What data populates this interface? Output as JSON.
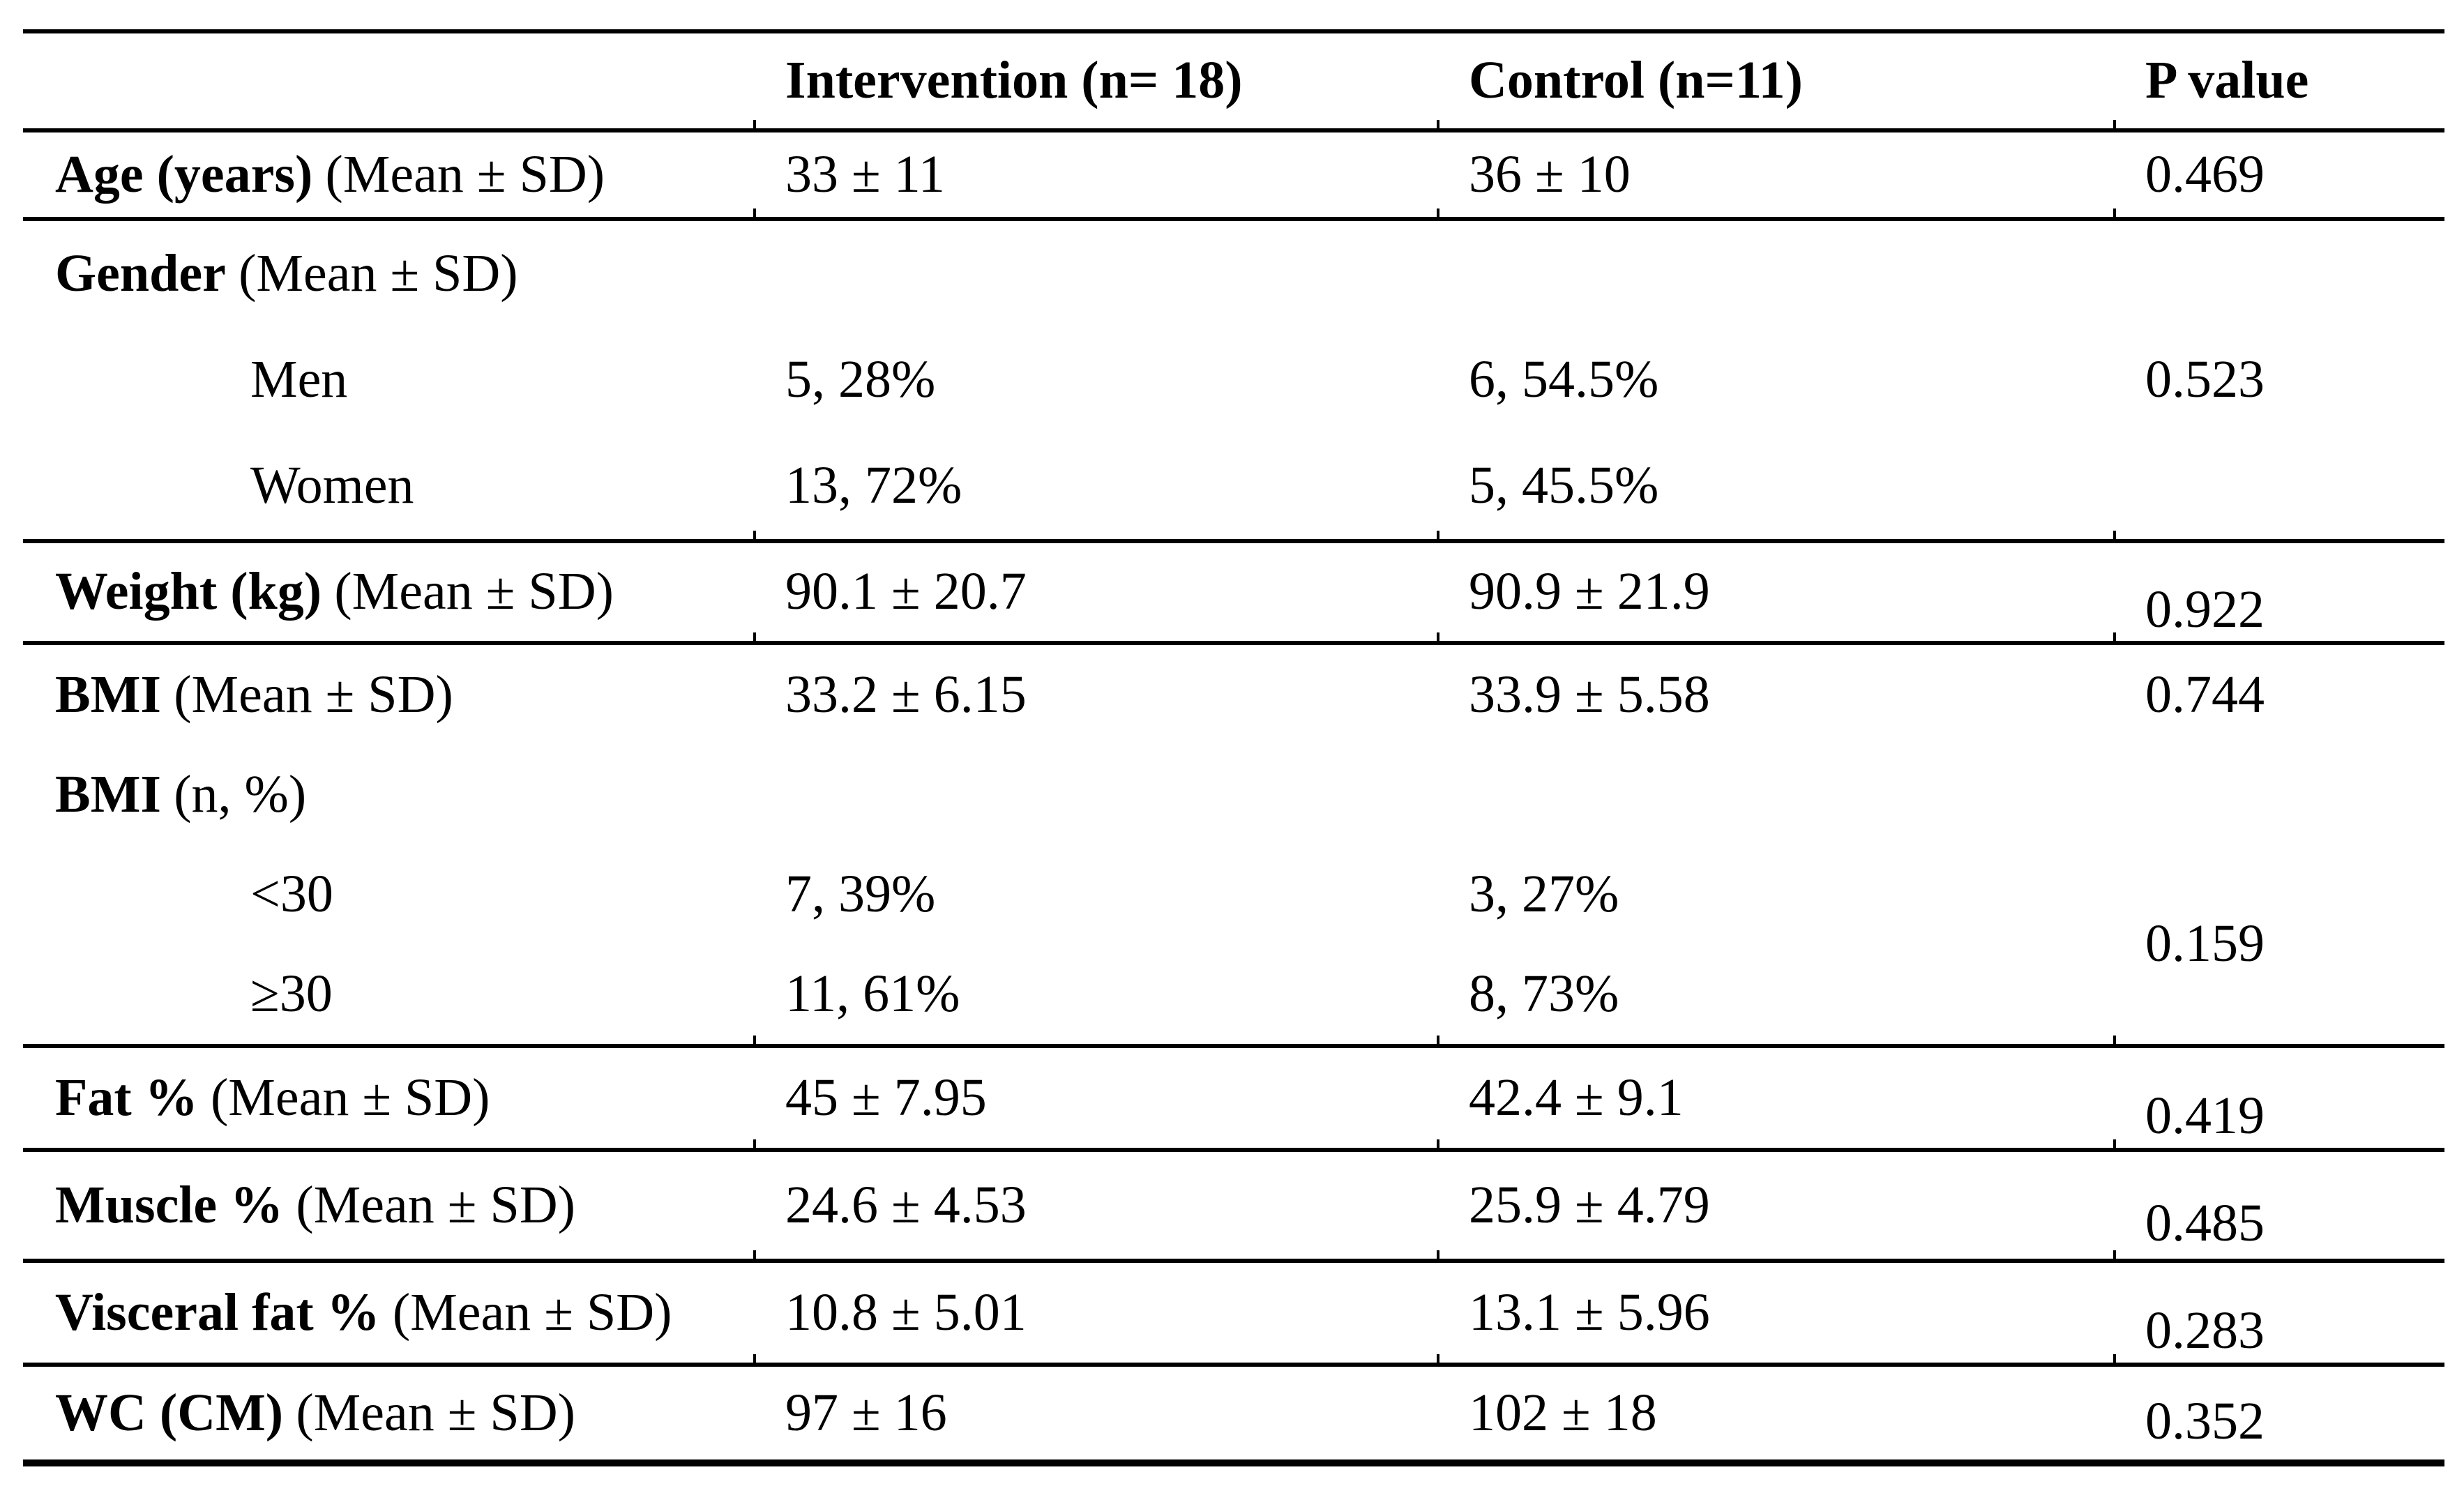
{
  "table": {
    "header": {
      "variable": "",
      "intervention": "Intervention (n= 18)",
      "control": "Control (n=11)",
      "p_value": "P value"
    },
    "rows": {
      "age": {
        "label": "Age (years)",
        "note": "(Mean ± SD)",
        "intervention": "33 ± 11",
        "control": "36 ± 10",
        "p": "0.469"
      },
      "gender": {
        "label": "Gender",
        "note": "(Mean ± SD)",
        "men": {
          "label": "Men",
          "intervention": "5, 28%",
          "control": "6, 54.5%",
          "p": "0.523"
        },
        "women": {
          "label": "Women",
          "intervention": "13, 72%",
          "control": "5, 45.5%",
          "p": ""
        }
      },
      "weight": {
        "label": "Weight (kg)",
        "note": "(Mean ± SD)",
        "intervention": "90.1 ± 20.7",
        "control": "90.9 ± 21.9",
        "p": "0.922"
      },
      "bmi_mean": {
        "label": "BMI",
        "note": "(Mean ± SD)",
        "intervention": "33.2 ± 6.15",
        "control": "33.9 ± 5.58",
        "p": "0.744"
      },
      "bmi_categories": {
        "label": "BMI",
        "note": "(n, %)",
        "under_30": {
          "label": "<30",
          "intervention": "7, 39%",
          "control": "3, 27%"
        },
        "over_30": {
          "label": "≥30",
          "intervention": "11, 61%",
          "control": "8, 73%"
        },
        "p": "0.159"
      },
      "fat": {
        "label": "Fat %",
        "note": "(Mean ± SD)",
        "intervention": "45 ± 7.95",
        "control": "42.4 ± 9.1",
        "p": "0.419"
      },
      "muscle": {
        "label": "Muscle %",
        "note": "(Mean ± SD)",
        "intervention": "24.6 ± 4.53",
        "control": "25.9 ± 4.79",
        "p": "0.485"
      },
      "visceral_fat": {
        "label": "Visceral fat %",
        "note": "(Mean ± SD)",
        "intervention": "10.8 ± 5.01",
        "control": "13.1 ± 5.96",
        "p": "0.283"
      },
      "wc": {
        "label": "WC (CM)",
        "note": "(Mean ± SD)",
        "intervention": "97 ± 16",
        "control": "102 ± 18",
        "p": "0.352"
      }
    }
  }
}
